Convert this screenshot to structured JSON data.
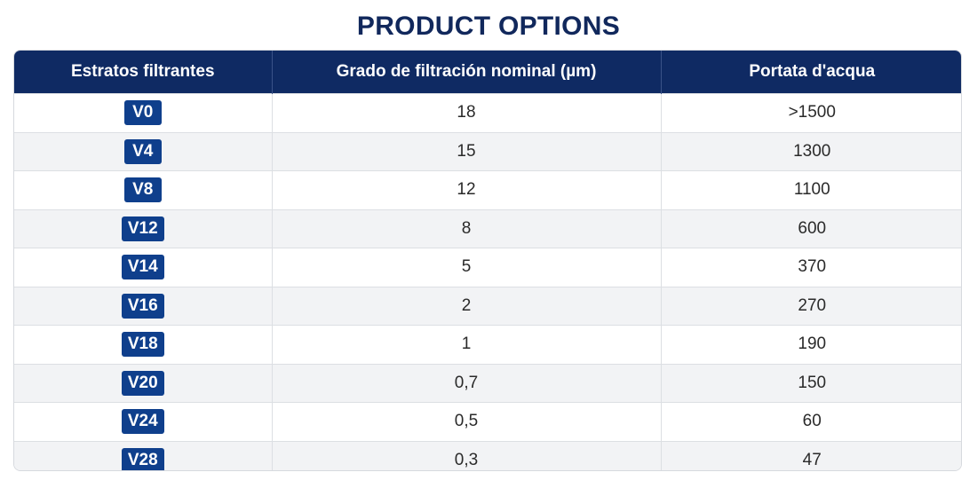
{
  "title": "PRODUCT OPTIONS",
  "columns": [
    "Estratos filtrantes",
    "Grado de filtración nominal (µm)",
    "Portata d'acqua"
  ],
  "rows": [
    {
      "grade": "V0",
      "filtration": "18",
      "flow": ">1500"
    },
    {
      "grade": "V4",
      "filtration": "15",
      "flow": "1300"
    },
    {
      "grade": "V8",
      "filtration": "12",
      "flow": "1100"
    },
    {
      "grade": "V12",
      "filtration": "8",
      "flow": "600"
    },
    {
      "grade": "V14",
      "filtration": "5",
      "flow": "370"
    },
    {
      "grade": "V16",
      "filtration": "2",
      "flow": "270"
    },
    {
      "grade": "V18",
      "filtration": "1",
      "flow": "190"
    },
    {
      "grade": "V20",
      "filtration": "0,7",
      "flow": "150"
    },
    {
      "grade": "V24",
      "filtration": "0,5",
      "flow": "60"
    },
    {
      "grade": "V28",
      "filtration": "0,3",
      "flow": "47"
    }
  ],
  "colors": {
    "title": "#11285c",
    "header_bg": "#0f2a63",
    "badge_bg": "#0f3f8c",
    "row_alt_bg": "#f2f3f5"
  }
}
